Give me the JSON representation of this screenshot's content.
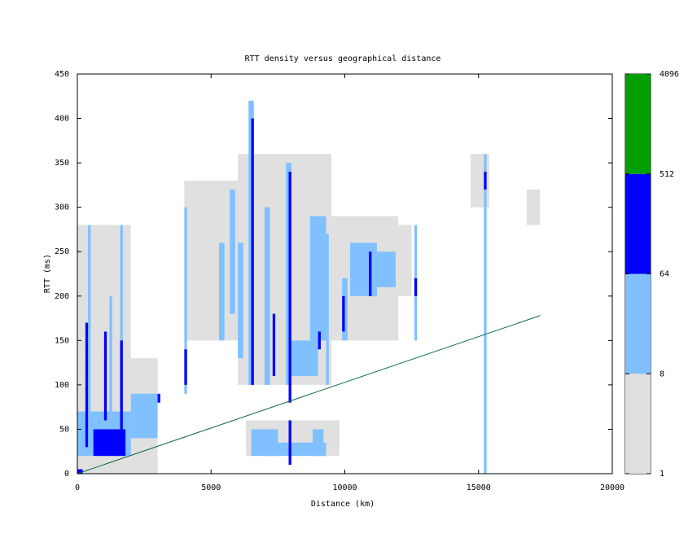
{
  "chart_data": {
    "type": "heatmap",
    "title": "RTT density versus geographical distance",
    "x_label": "Distance (km)",
    "y_label": "RTT (ms)",
    "xlim": [
      0,
      20000
    ],
    "ylim": [
      0,
      450
    ],
    "xticks": [
      0,
      5000,
      10000,
      15000,
      20000
    ],
    "yticks": [
      0,
      50,
      100,
      150,
      200,
      250,
      300,
      350,
      400,
      450
    ],
    "colorbar": {
      "ticks": [
        1,
        8,
        64,
        512,
        4096
      ],
      "colors": [
        "#e0e0e0",
        "#80c0ff",
        "#0000ff",
        "#00a000"
      ],
      "log": true
    },
    "cells": {
      "x0": [
        0,
        0,
        4000,
        6000,
        8000,
        9500,
        14700,
        16800,
        6300,
        0,
        400,
        1600,
        1200,
        2000,
        6400,
        7000,
        7800,
        8000,
        8700,
        9300,
        10200,
        11200,
        12600,
        15200,
        6500,
        8800,
        7000,
        4000,
        5300,
        5700,
        6000,
        9900,
        600,
        300,
        1000,
        1600,
        4000,
        6500,
        7300,
        7900,
        9000,
        10900,
        15200,
        7900,
        12600,
        9900,
        3000,
        0
      ],
      "x1": [
        3000,
        2000,
        6500,
        9500,
        12000,
        12500,
        15400,
        17300,
        9800,
        2000,
        500,
        1700,
        1300,
        3000,
        6600,
        7200,
        8000,
        9000,
        9300,
        9400,
        11200,
        11900,
        12700,
        15300,
        7500,
        9200,
        9300,
        4100,
        5500,
        5900,
        6200,
        10100,
        1800,
        400,
        1100,
        1700,
        4100,
        6600,
        7400,
        8000,
        9100,
        11000,
        15300,
        8000,
        12700,
        10000,
        3100,
        200
      ],
      "y0": [
        0,
        130,
        150,
        100,
        150,
        200,
        300,
        280,
        20,
        20,
        60,
        60,
        60,
        40,
        100,
        100,
        100,
        110,
        150,
        100,
        200,
        210,
        150,
        0,
        20,
        20,
        20,
        90,
        150,
        180,
        130,
        150,
        20,
        30,
        60,
        50,
        100,
        100,
        110,
        80,
        140,
        200,
        320,
        10,
        200,
        160,
        80,
        0
      ],
      "y1": [
        130,
        280,
        330,
        360,
        290,
        280,
        360,
        320,
        60,
        70,
        280,
        280,
        200,
        90,
        420,
        300,
        350,
        150,
        290,
        270,
        260,
        250,
        280,
        360,
        50,
        50,
        35,
        300,
        260,
        320,
        260,
        220,
        50,
        170,
        160,
        150,
        140,
        400,
        180,
        340,
        160,
        250,
        340,
        60,
        220,
        200,
        90,
        5
      ],
      "values": [
        3,
        3,
        3,
        3,
        3,
        3,
        3,
        3,
        3,
        20,
        20,
        20,
        20,
        20,
        20,
        20,
        20,
        20,
        20,
        20,
        20,
        20,
        20,
        20,
        20,
        20,
        20,
        20,
        20,
        20,
        20,
        20,
        150,
        150,
        150,
        150,
        150,
        150,
        150,
        150,
        150,
        150,
        150,
        150,
        150,
        150,
        150,
        150
      ]
    },
    "fit_line": {
      "x": [
        0,
        17300
      ],
      "y": [
        0,
        178
      ],
      "color": "#0a6b4a"
    }
  }
}
